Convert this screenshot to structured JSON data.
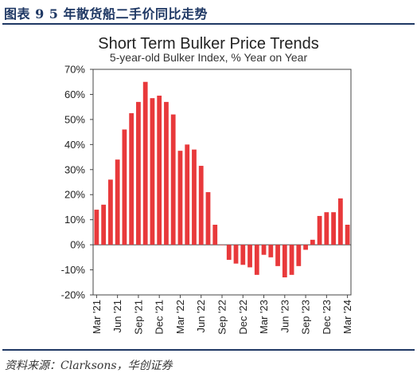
{
  "figure": {
    "caption": "图表 9  5 年散货船二手价同比走势",
    "source": "资料来源：Clarksons，华创证券"
  },
  "colors": {
    "bar": "#e8393b",
    "header": "#1f3864",
    "axis": "#444444"
  },
  "chart_data": {
    "type": "bar",
    "title": "Short Term Bulker Price Trends",
    "subtitle": "5-year-old Bulker Index, % Year on Year",
    "xlabel": "",
    "ylabel": "",
    "ylim": [
      -20,
      70
    ],
    "yticks": [
      -20,
      -10,
      0,
      10,
      20,
      30,
      40,
      50,
      60,
      70
    ],
    "ytick_labels": [
      "-20%",
      "-10%",
      "0%",
      "10%",
      "20%",
      "30%",
      "40%",
      "50%",
      "60%",
      "70%"
    ],
    "xtick_labels": [
      "Mar '21",
      "Jun '21",
      "Sep '21",
      "Dec '21",
      "Mar '22",
      "Jun '22",
      "Sep '22",
      "Dec '22",
      "Mar '23",
      "Jun '23",
      "Sep '23",
      "Dec '23",
      "Mar '24"
    ],
    "xtick_positions": [
      0,
      3,
      6,
      9,
      12,
      15,
      18,
      21,
      24,
      27,
      30,
      33,
      36
    ],
    "categories": [
      "Mar '21",
      "Apr '21",
      "May '21",
      "Jun '21",
      "Jul '21",
      "Aug '21",
      "Sep '21",
      "Oct '21",
      "Nov '21",
      "Dec '21",
      "Jan '22",
      "Feb '22",
      "Mar '22",
      "Apr '22",
      "May '22",
      "Jun '22",
      "Jul '22",
      "Aug '22",
      "Sep '22",
      "Oct '22",
      "Nov '22",
      "Dec '22",
      "Jan '23",
      "Feb '23",
      "Mar '23",
      "Apr '23",
      "May '23",
      "Jun '23",
      "Jul '23",
      "Aug '23",
      "Sep '23",
      "Oct '23",
      "Nov '23",
      "Dec '23",
      "Jan '24",
      "Feb '24",
      "Mar '24"
    ],
    "values": [
      14,
      16,
      26,
      34,
      46,
      52.5,
      57,
      65,
      58.5,
      59.5,
      57,
      52,
      37.5,
      40,
      38,
      31.5,
      21,
      8,
      0,
      -6,
      -7.5,
      -8,
      -9,
      -12,
      -4,
      -5,
      -8.5,
      -13,
      -12,
      -8.5,
      -2,
      2,
      11.5,
      13,
      13,
      18.5,
      8
    ],
    "grid": false,
    "legend": "none"
  }
}
